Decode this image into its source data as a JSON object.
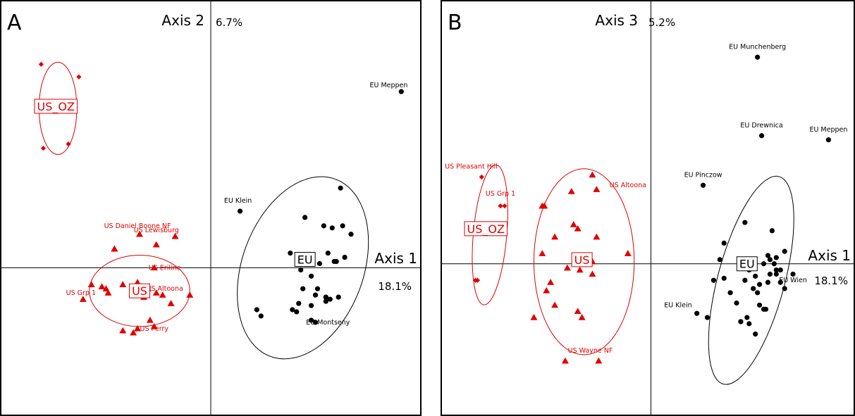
{
  "colors": {
    "eu": "#000000",
    "us": "#e00000",
    "us_oz": "#e00000"
  },
  "chart_data": [
    {
      "type": "scatter",
      "panel_label": "A",
      "xlabel": "Axis 1",
      "xpercent": "18.1%",
      "ylabel": "Axis 2",
      "ypercent": "6.7%",
      "xlim": [
        -1.0,
        1.0
      ],
      "ylim": [
        -0.7,
        1.27
      ],
      "grid": false,
      "series": [
        {
          "name": "EU",
          "marker": "circle",
          "color": "#000000",
          "x": [
            0.91,
            0.14,
            0.62,
            0.67,
            0.58,
            0.45,
            0.54,
            0.63,
            0.38,
            0.47,
            0.46,
            0.52,
            0.43,
            0.6,
            0.59,
            0.64,
            0.56,
            0.48,
            0.44,
            0.51,
            0.5,
            0.55,
            0.55,
            0.42,
            0.48,
            0.57,
            0.39,
            0.41,
            0.5,
            0.48,
            0.55,
            0.61,
            0.22,
            0.24
          ],
          "y": [
            0.84,
            0.27,
            0.38,
            0.16,
            0.19,
            0.24,
            0.2,
            0.2,
            0.07,
            0.03,
            0.06,
            0.02,
            -0.01,
            0.03,
            0.03,
            0.05,
            0.07,
            -0.04,
            -0.1,
            -0.1,
            -0.13,
            -0.14,
            -0.16,
            -0.17,
            -0.18,
            -0.15,
            -0.2,
            -0.21,
            -0.26,
            -0.25,
            -0.14,
            -0.14,
            -0.2,
            -0.23
          ],
          "ellipse": {
            "cx": 0.44,
            "cy": 0.0,
            "rx": 0.29,
            "ry": 0.45,
            "angle_deg": 20
          },
          "group_label": {
            "text": "EU",
            "x": 0.45,
            "y": 0.04
          },
          "point_labels": [
            {
              "text": "EU Meppen",
              "x": 0.85,
              "y": 0.86
            },
            {
              "text": "EU Klein",
              "x": 0.13,
              "y": 0.31
            },
            {
              "text": "EU Montseny",
              "x": 0.56,
              "y": -0.27
            }
          ]
        },
        {
          "name": "US",
          "marker": "triangle",
          "color": "#e00000",
          "x": [
            -0.34,
            -0.46,
            -0.17,
            -0.26,
            -0.46,
            -0.27,
            -0.61,
            -0.52,
            -0.57,
            -0.5,
            -0.49,
            -0.35,
            -0.33,
            -0.3,
            -0.26,
            -0.32,
            -0.23,
            -0.19,
            -0.1,
            -0.29,
            -0.35,
            -0.42,
            -0.37,
            -0.27,
            -0.42
          ],
          "y": [
            0.16,
            0.09,
            0.15,
            0.11,
            0.09,
            0.0,
            -0.15,
            -0.09,
            -0.08,
            -0.1,
            -0.12,
            -0.07,
            -0.09,
            -0.1,
            -0.12,
            -0.14,
            -0.13,
            -0.17,
            -0.13,
            -0.25,
            -0.29,
            -0.3,
            -0.31,
            -0.28,
            -0.08
          ],
          "ellipse": {
            "cx": -0.34,
            "cy": -0.11,
            "rx": 0.24,
            "ry": 0.17,
            "angle_deg": 0
          },
          "group_label": {
            "text": "US",
            "x": -0.34,
            "y": -0.11
          },
          "point_labels": [
            {
              "text": "US Daniel Boone NF",
              "x": -0.35,
              "y": 0.19
            },
            {
              "text": "US Lewisburg",
              "x": -0.26,
              "y": 0.17
            },
            {
              "text": "US Eriline",
              "x": -0.22,
              "y": -0.01
            },
            {
              "text": "US Altoona",
              "x": -0.22,
              "y": -0.11
            },
            {
              "text": "US Grp 1",
              "x": -0.62,
              "y": -0.13
            },
            {
              "text": "US Perry",
              "x": -0.27,
              "y": -0.3
            }
          ]
        },
        {
          "name": "US_OZ",
          "marker": "diamond",
          "color": "#e00000",
          "x": [
            -0.81,
            -0.63,
            -0.8,
            -0.68
          ],
          "y": [
            0.97,
            0.91,
            0.57,
            0.59
          ],
          "ellipse": {
            "cx": -0.73,
            "cy": 0.76,
            "rx": 0.09,
            "ry": 0.22,
            "angle_deg": 0
          },
          "group_label": {
            "text": "US_OZ",
            "x": -0.74,
            "y": 0.77
          },
          "point_labels": []
        }
      ]
    },
    {
      "type": "scatter",
      "panel_label": "B",
      "xlabel": "Axis 1",
      "xpercent": "18.1%",
      "ylabel": "Axis 3",
      "ypercent": "5.2%",
      "xlim": [
        -1.0,
        0.97
      ],
      "ylim": [
        -0.73,
        1.27
      ],
      "grid": false,
      "series": [
        {
          "name": "EU",
          "marker": "circle",
          "color": "#000000",
          "x": [
            0.51,
            0.53,
            0.85,
            0.25,
            0.45,
            0.58,
            0.35,
            0.6,
            0.33,
            0.6,
            0.57,
            0.64,
            0.56,
            0.47,
            0.62,
            0.57,
            0.54,
            0.59,
            0.6,
            0.5,
            0.3,
            0.35,
            0.45,
            0.49,
            0.52,
            0.56,
            0.51,
            0.62,
            0.64,
            0.68,
            0.38,
            0.41,
            0.54,
            0.55,
            0.46,
            0.47,
            0.43,
            0.43,
            0.52,
            0.5,
            0.22,
            0.27
          ],
          "y": [
            1.0,
            0.62,
            0.6,
            0.38,
            0.2,
            0.16,
            0.1,
            0.03,
            0.02,
            -0.03,
            0.02,
            0.06,
            0.04,
            -0.03,
            -0.03,
            -0.05,
            0.0,
            0.0,
            -0.05,
            -0.06,
            -0.08,
            -0.07,
            -0.08,
            -0.12,
            -0.1,
            -0.09,
            -0.14,
            -0.09,
            -0.12,
            -0.05,
            -0.14,
            -0.19,
            -0.22,
            -0.22,
            -0.26,
            -0.29,
            -0.28,
            -0.28,
            -0.2,
            -0.34,
            -0.24,
            -0.26
          ],
          "ellipse": {
            "cx": 0.48,
            "cy": -0.08,
            "rx": 0.16,
            "ry": 0.52,
            "angle_deg": 15
          },
          "group_label": {
            "text": "EU",
            "x": 0.46,
            "y": 0.0
          },
          "point_labels": [
            {
              "text": "EU Munchenberg",
              "x": 0.51,
              "y": 1.04
            },
            {
              "text": "EU Drewnica",
              "x": 0.53,
              "y": 0.66
            },
            {
              "text": "EU Meppen",
              "x": 0.85,
              "y": 0.64
            },
            {
              "text": "EU Pinczow",
              "x": 0.25,
              "y": 0.42
            },
            {
              "text": "EU Wien",
              "x": 0.68,
              "y": -0.09
            },
            {
              "text": "EU Klein",
              "x": 0.13,
              "y": -0.21
            }
          ]
        },
        {
          "name": "US",
          "marker": "triangle",
          "color": "#e00000",
          "x": [
            -0.28,
            -0.38,
            -0.52,
            -0.51,
            -0.26,
            -0.37,
            -0.35,
            -0.46,
            -0.26,
            -0.28,
            -0.52,
            -0.11,
            -0.4,
            -0.34,
            -0.28,
            -0.5,
            -0.48,
            -0.46,
            -0.35,
            -0.56,
            -0.33,
            -0.41,
            -0.25
          ],
          "y": [
            0.43,
            0.35,
            0.28,
            0.28,
            0.36,
            0.19,
            0.17,
            0.13,
            0.13,
            0.01,
            0.05,
            0.05,
            -0.02,
            -0.03,
            -0.05,
            -0.13,
            -0.09,
            -0.2,
            -0.23,
            -0.26,
            -0.26,
            -0.47,
            -0.47
          ],
          "ellipse": {
            "cx": -0.32,
            "cy": 0.01,
            "rx": 0.24,
            "ry": 0.45,
            "angle_deg": 0
          },
          "group_label": {
            "text": "US",
            "x": -0.33,
            "y": 0.02
          },
          "point_labels": [
            {
              "text": "US Altoona",
              "x": -0.11,
              "y": 0.37
            },
            {
              "text": "US Wayne NF",
              "x": -0.29,
              "y": -0.43
            }
          ]
        },
        {
          "name": "US_OZ",
          "marker": "diamond",
          "color": "#e00000",
          "x": [
            -0.81,
            -0.7,
            -0.72,
            -0.84,
            -0.83
          ],
          "y": [
            0.42,
            0.28,
            0.28,
            -0.08,
            -0.08
          ],
          "ellipse": {
            "cx": -0.77,
            "cy": 0.14,
            "rx": 0.08,
            "ry": 0.34,
            "angle_deg": 5
          },
          "group_label": {
            "text": "US_OZ",
            "x": -0.79,
            "y": 0.17
          },
          "point_labels": [
            {
              "text": "US Pleasant Hill",
              "x": -0.86,
              "y": 0.46
            },
            {
              "text": "US Grp 1",
              "x": -0.72,
              "y": 0.33
            }
          ]
        }
      ]
    }
  ]
}
